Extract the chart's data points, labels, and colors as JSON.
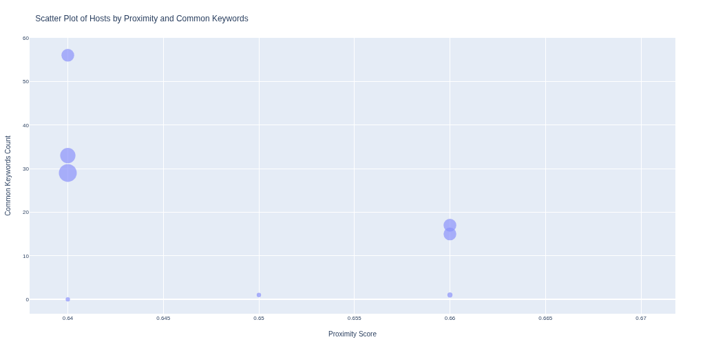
{
  "chart_data": {
    "type": "bubble",
    "title": "Scatter Plot of Hosts by Proximity and Common Keywords",
    "xlabel": "Proximity Score",
    "ylabel": "Common Keywords Count",
    "x": [
      0.64,
      0.64,
      0.64,
      0.64,
      0.65,
      0.66,
      0.66,
      0.66
    ],
    "values": [
      56,
      33,
      29,
      0,
      1,
      17,
      15,
      1
    ],
    "sizes": [
      0.51,
      0.73,
      1,
      0.06,
      0.06,
      0.51,
      0.51,
      0.08
    ],
    "color": "#8b93fb",
    "xlim": [
      0.638,
      0.6718
    ],
    "xticks": [
      0.64,
      0.645,
      0.65,
      0.655,
      0.66,
      0.665,
      0.67
    ],
    "ylim": [
      -3.3,
      60
    ],
    "yticks": [
      0,
      10,
      20,
      30,
      40,
      50,
      60
    ],
    "grid": true
  }
}
